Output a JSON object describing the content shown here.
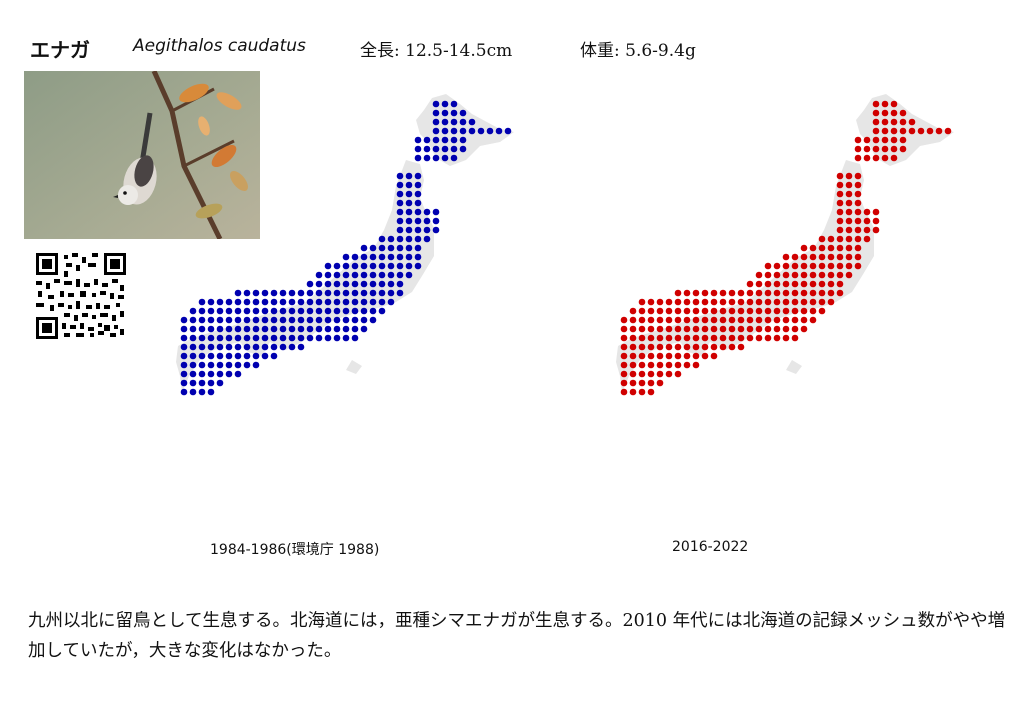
{
  "header": {
    "japanese_name": "エナガ",
    "scientific_name": "Aegithalos caudatus",
    "length": "全長: 12.5-14.5cm",
    "weight": "体重: 5.6-9.4g"
  },
  "maps": {
    "left": {
      "caption": "1984-1986(環境庁 1988)",
      "color": "#0000b0"
    },
    "right": {
      "caption": "2016-2022",
      "color": "#d00000"
    }
  },
  "description": "九州以北に留鳥として生息する。北海道には，亜種シマエナガが生息する。2010 年代には北海道の記録メッシュ数がやや増加していたが，大きな変化はなかった。"
}
